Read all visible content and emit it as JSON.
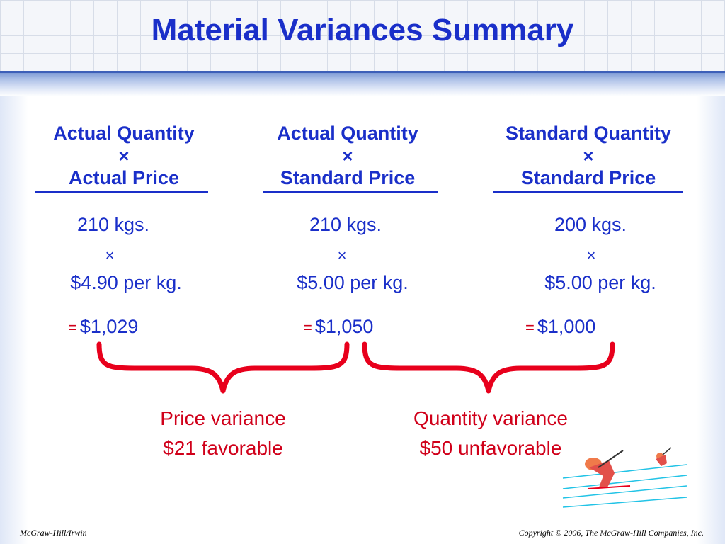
{
  "title": "Material Variances Summary",
  "columns": [
    {
      "header_line1": "Actual Quantity",
      "times_symbol": "×",
      "header_line2": "Actual Price",
      "quantity": "210 kgs.",
      "times": "×",
      "price": "$4.90 per kg.",
      "equals": "=",
      "total": "$1,029"
    },
    {
      "header_line1": "Actual Quantity",
      "times_symbol": "×",
      "header_line2": "Standard Price",
      "quantity": "210 kgs.",
      "times": "×",
      "price": "$5.00 per kg.",
      "equals": "=",
      "total": "$1,050"
    },
    {
      "header_line1": "Standard Quantity",
      "times_symbol": "×",
      "header_line2": "Standard Price",
      "quantity": "200 kgs.",
      "times": "×",
      "price": "$5.00 per kg.",
      "equals": "=",
      "total": "$1,000"
    }
  ],
  "variances": [
    {
      "name": "Price variance",
      "amount": "$21 favorable"
    },
    {
      "name": "Quantity variance",
      "amount": "$50 unfavorable"
    }
  ],
  "footer": {
    "left": "McGraw-Hill/Irwin",
    "right": "Copyright © 2006, The McGraw-Hill Companies, Inc."
  },
  "colors": {
    "title": "#1a2fc9",
    "text": "#1a2fc9",
    "variance": "#d0001a",
    "brace": "#e8001c"
  },
  "icons": [
    "skier-clipart"
  ]
}
